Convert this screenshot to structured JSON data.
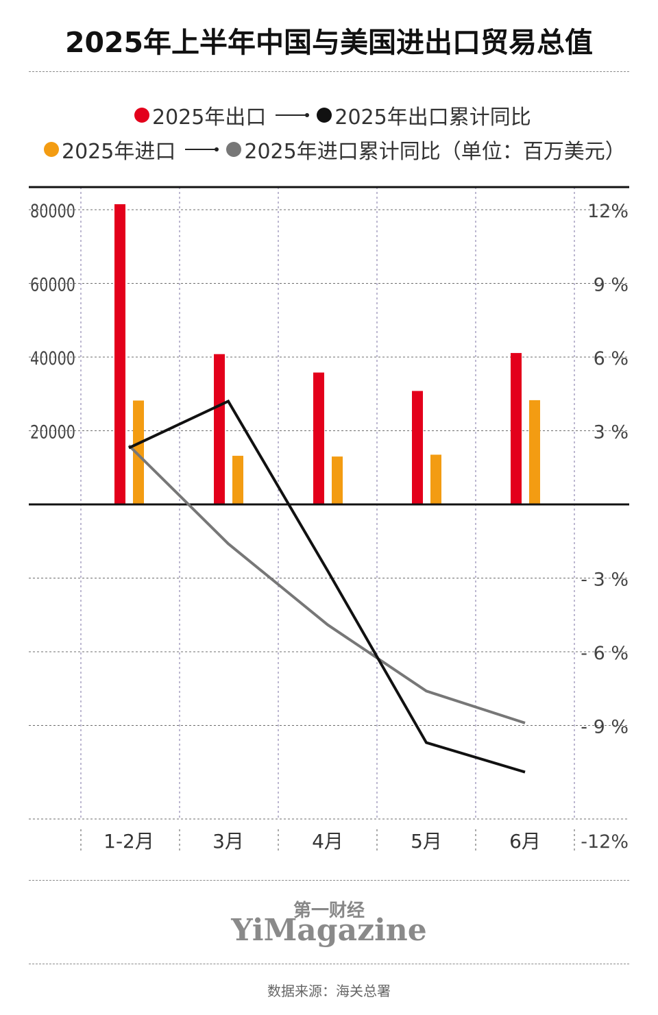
{
  "title": "2025年上半年中国与美国进出口贸易总值",
  "legend": {
    "row1_series1": "2025年出口",
    "row1_series2": "2025年出口累计同比",
    "row2_series1": "2025年进口",
    "row2_series2": "2025年进口累计同比（单位：百万美元）"
  },
  "colors": {
    "export": "#e3001b",
    "import": "#f39c12",
    "export_yoy": "#111111",
    "import_yoy": "#777777"
  },
  "brand": {
    "cn": "第一财经",
    "en": "YiMagazine"
  },
  "source": "数据来源：海关总署",
  "chart_data": {
    "type": "bar",
    "categories": [
      "1-2月",
      "3月",
      "4月",
      "5月",
      "6月"
    ],
    "series": [
      {
        "name": "2025年出口",
        "type": "bar",
        "axis": "left",
        "values": [
          81500,
          40800,
          35800,
          30800,
          41100
        ]
      },
      {
        "name": "2025年进口",
        "type": "bar",
        "axis": "left",
        "values": [
          28200,
          13200,
          13000,
          13500,
          28300
        ]
      },
      {
        "name": "2025年出口累计同比",
        "type": "line",
        "axis": "right",
        "values": [
          2.3,
          4.2,
          -2.7,
          -9.7,
          -10.9
        ]
      },
      {
        "name": "2025年进口累计同比",
        "type": "line",
        "axis": "right",
        "values": [
          2.4,
          -1.6,
          -4.9,
          -7.6,
          -8.9
        ]
      }
    ],
    "y_left": {
      "ticks": [
        "80000",
        "60000",
        "40000",
        "20000"
      ],
      "tick_values": [
        80000,
        60000,
        40000,
        20000
      ]
    },
    "y_right": {
      "ticks": [
        "12%",
        "9 %",
        "6 %",
        "3 %",
        "- 3 %",
        "- 6 %",
        "- 9 %",
        "-12%"
      ],
      "tick_values": [
        12,
        9,
        6,
        3,
        -3,
        -6,
        -9,
        -12
      ],
      "range": [
        -12,
        12
      ]
    },
    "grid": true
  }
}
